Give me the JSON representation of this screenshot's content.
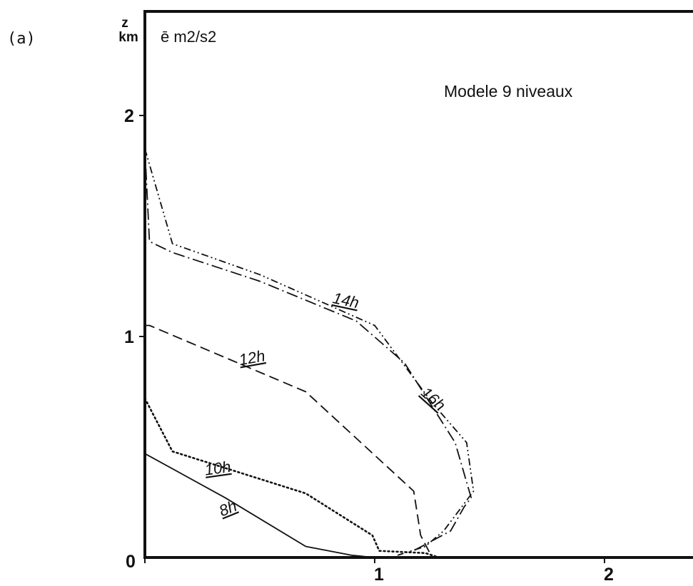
{
  "panel_label": "(a)",
  "chart_data": {
    "type": "line",
    "title": "Modele  9 niveaux",
    "quantity_label": "ē  m2/s2",
    "ylabel": "z",
    "yunit": "km",
    "xlim": [
      0,
      2.4
    ],
    "ylim": [
      0,
      2.42
    ],
    "xticks": [
      {
        "value": 0,
        "label": "0"
      },
      {
        "value": 1,
        "label": "1"
      },
      {
        "value": 2,
        "label": "2"
      }
    ],
    "yticks": [
      {
        "value": 1,
        "label": "1"
      },
      {
        "value": 2,
        "label": "2"
      }
    ],
    "grid": false,
    "series": [
      {
        "name": "8h",
        "style": "solid",
        "x": [
          0,
          0.35,
          0.7,
          0.9,
          1.0
        ],
        "y": [
          0.47,
          0.27,
          0.05,
          0.01,
          0
        ]
      },
      {
        "name": "10h",
        "style": "dotted",
        "x": [
          0,
          0.12,
          0.7,
          0.99,
          1.02,
          1.22,
          1.28
        ],
        "y": [
          0.72,
          0.48,
          0.29,
          0.1,
          0.03,
          0.02,
          0
        ]
      },
      {
        "name": "12h",
        "style": "dashed",
        "x": [
          0,
          0.02,
          0.7,
          1.17,
          1.2,
          1.25
        ],
        "y": [
          1.05,
          1.05,
          0.75,
          0.3,
          0.1,
          0
        ]
      },
      {
        "name": "14h",
        "style": "dash-dot",
        "x": [
          0,
          0.02,
          0.12,
          0.5,
          0.92,
          1.13,
          1.35,
          1.42,
          1.39,
          1.33,
          1.15
        ],
        "y": [
          1.85,
          1.43,
          1.38,
          1.25,
          1.07,
          0.88,
          0.52,
          0.27,
          0.23,
          0.12,
          0.02
        ]
      },
      {
        "name": "16h",
        "style": "dash-dot-dot",
        "x": [
          0,
          0.12,
          0.5,
          1.0,
          1.25,
          1.4,
          1.43,
          1.3,
          1.22,
          1.1
        ],
        "y": [
          1.85,
          1.42,
          1.28,
          1.05,
          0.7,
          0.52,
          0.3,
          0.12,
          0.05,
          0.01
        ]
      }
    ],
    "series_labels": [
      {
        "series": "8h",
        "x": 0.37,
        "y": 0.2,
        "rotate": -22
      },
      {
        "series": "10h",
        "x": 0.32,
        "y": 0.38,
        "rotate": -8
      },
      {
        "series": "12h",
        "x": 0.47,
        "y": 0.88,
        "rotate": -10
      },
      {
        "series": "14h",
        "x": 0.87,
        "y": 1.14,
        "rotate": 12
      },
      {
        "series": "16h",
        "x": 1.24,
        "y": 0.7,
        "rotate": 42
      }
    ]
  }
}
